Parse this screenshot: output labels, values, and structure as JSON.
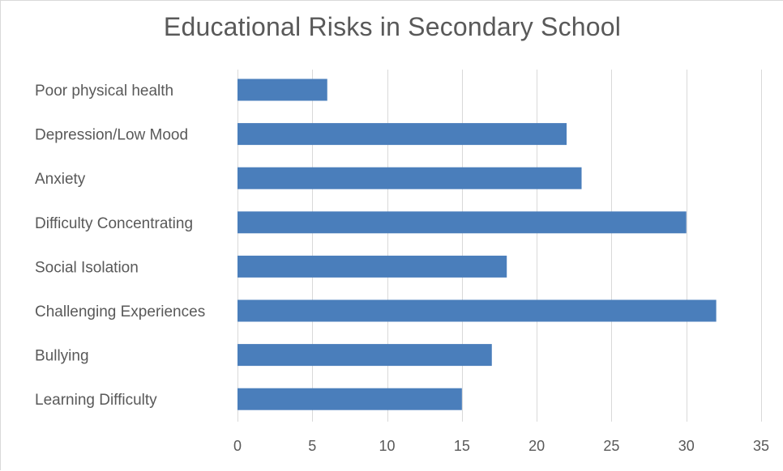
{
  "chart_data": {
    "type": "bar",
    "orientation": "horizontal",
    "title": "Educational Risks in Secondary School",
    "categories": [
      "Poor physical health",
      "Depression/Low Mood",
      "Anxiety",
      "Difficulty Concentrating",
      "Social Isolation",
      "Challenging Experiences",
      "Bullying",
      "Learning Difficulty"
    ],
    "values": [
      6,
      22,
      23,
      30,
      18,
      32,
      17,
      15
    ],
    "xlim": [
      0,
      35
    ],
    "xticks": [
      0,
      5,
      10,
      15,
      20,
      25,
      30,
      35
    ],
    "xlabel": "",
    "ylabel": "",
    "grid": true,
    "legend": "none",
    "bar_color": "#4a7ebb"
  }
}
